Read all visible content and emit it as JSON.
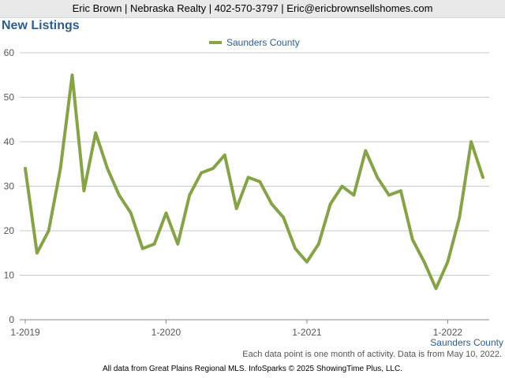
{
  "header": {
    "contact_line": "Eric Brown | Nebraska Realty | 402-570-3797 | Eric@ericbrownsellshomes.com"
  },
  "chart_data": {
    "type": "line",
    "title": "New Listings",
    "xlabel": "",
    "ylabel": "",
    "ylim": [
      0,
      60
    ],
    "yticks": [
      0,
      10,
      20,
      30,
      40,
      50,
      60
    ],
    "grid": true,
    "legend_position": "top-center",
    "x_start": "1-2019",
    "x_tick_labels": [
      "1-2019",
      "1-2020",
      "1-2021",
      "1-2022"
    ],
    "series": [
      {
        "name": "Saunders County",
        "color": "#86a34a",
        "values": [
          34,
          15,
          20,
          34,
          55,
          29,
          42,
          34,
          28,
          24,
          16,
          17,
          24,
          17,
          28,
          33,
          34,
          37,
          25,
          32,
          31,
          26,
          23,
          16,
          13,
          17,
          26,
          30,
          28,
          38,
          32,
          28,
          29,
          18,
          13,
          7,
          13,
          23,
          40,
          32
        ]
      }
    ],
    "series_label_bottom": "Saunders County"
  },
  "footer": {
    "note": "Each data point is one month of activity. Data is from May 10, 2022.",
    "source": "All data from Great Plains Regional MLS. InfoSparks © 2025 ShowingTime Plus, LLC."
  }
}
